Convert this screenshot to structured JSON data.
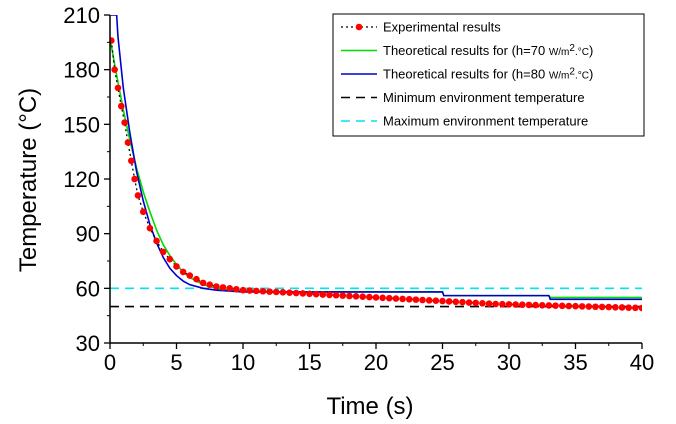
{
  "chart_data": {
    "type": "line",
    "xlabel": "Time (s)",
    "ylabel": "Temperature (°C)",
    "xlim": [
      0,
      40
    ],
    "ylim": [
      30,
      210
    ],
    "xticks": [
      0,
      5,
      10,
      15,
      20,
      25,
      30,
      35,
      40
    ],
    "yticks": [
      30,
      60,
      90,
      120,
      150,
      180,
      210
    ],
    "grid": false,
    "legend_position": "top-right",
    "series": [
      {
        "name": "Experimental results",
        "style": "dotted-markers",
        "color": "#000000",
        "marker_color": "#ff0000",
        "x": [
          0.1,
          0.35,
          0.6,
          0.85,
          1.1,
          1.35,
          1.6,
          1.85,
          2.1,
          2.5,
          3.0,
          3.5,
          4.0,
          4.5,
          5.0,
          5.5,
          6.0,
          6.5,
          7.0,
          7.5,
          8.0,
          8.5,
          9.0,
          9.5,
          10.0,
          10.5,
          11.0,
          11.5,
          12.0,
          12.5,
          13.0,
          13.5,
          14.0,
          14.5,
          15.0,
          15.5,
          16.0,
          16.5,
          17.0,
          17.5,
          18.0,
          18.5,
          19.0,
          19.5,
          20.0,
          20.5,
          21.0,
          21.5,
          22.0,
          22.5,
          23.0,
          23.5,
          24.0,
          24.5,
          25.0,
          25.5,
          26.0,
          26.5,
          27.0,
          27.5,
          28.0,
          28.5,
          29.0,
          29.5,
          30.0,
          30.5,
          31.0,
          31.5,
          32.0,
          32.5,
          33.0,
          33.5,
          34.0,
          34.5,
          35.0,
          35.5,
          36.0,
          36.5,
          37.0,
          37.5,
          38.0,
          38.5,
          39.0,
          39.5,
          40.0
        ],
        "y": [
          196,
          180,
          170,
          160,
          151,
          140,
          130,
          120,
          111,
          102,
          93,
          86,
          80,
          76,
          72,
          69,
          67,
          65,
          63,
          62,
          61,
          60.5,
          60,
          59.5,
          59,
          58.8,
          58.6,
          58.4,
          58.2,
          58,
          57.8,
          57.6,
          57.4,
          57.2,
          57,
          56.8,
          56.6,
          56.4,
          56.2,
          56,
          55.8,
          55.6,
          55.4,
          55.2,
          55,
          54.8,
          54.6,
          54.4,
          54.2,
          54,
          53.8,
          53.6,
          53.4,
          53.2,
          53,
          52.8,
          52.6,
          52.4,
          52.2,
          52,
          51.8,
          51.6,
          51.4,
          51.3,
          51.2,
          51.1,
          51,
          50.9,
          50.8,
          50.7,
          50.6,
          50.5,
          50.4,
          50.3,
          50.2,
          50.1,
          50,
          49.9,
          49.8,
          49.7,
          49.6,
          49.5,
          49.4,
          49.3,
          49.2
        ]
      },
      {
        "name": "Theoretical results for (h=70 W/m².°C)",
        "style": "solid",
        "color": "#00dd00",
        "x": [
          0,
          0.5,
          1,
          1.5,
          2,
          2.5,
          3,
          3.5,
          4,
          4.5,
          5,
          5.5,
          6,
          7,
          8,
          9,
          10,
          12,
          14,
          16,
          18,
          20,
          22,
          24,
          25,
          25.1,
          26,
          28,
          30,
          32,
          33,
          33.1,
          34,
          36,
          38,
          40
        ],
        "y": [
          197,
          177,
          158,
          141,
          126,
          113,
          102,
          92,
          84,
          78,
          73,
          69,
          66,
          62,
          60,
          59,
          58.5,
          58,
          58,
          58,
          58,
          58,
          58,
          58,
          58,
          56,
          56,
          56,
          56,
          56,
          56,
          55,
          55,
          55,
          55,
          55
        ]
      },
      {
        "name": "Theoretical results for (h=80 W/m².°C)",
        "style": "solid",
        "color": "#0000cc",
        "x": [
          0,
          0.5,
          0.6,
          1,
          1.5,
          2,
          2.5,
          3,
          3.5,
          4,
          4.5,
          5,
          5.5,
          6,
          7,
          8,
          9,
          10,
          12,
          14,
          16,
          18,
          20,
          22,
          24,
          25,
          25.1,
          26,
          28,
          30,
          32,
          33,
          33.1,
          34,
          36,
          38,
          40
        ],
        "y": [
          210,
          210,
          198,
          170,
          145,
          124,
          108,
          95,
          85,
          77,
          71,
          67,
          64,
          62,
          60,
          59,
          58.5,
          58,
          58,
          58,
          58,
          58,
          58,
          58,
          58,
          58,
          56,
          56,
          56,
          56,
          56,
          56,
          54,
          54,
          54,
          54,
          54
        ]
      },
      {
        "name": "Minimum environment temperature",
        "style": "dashed",
        "color": "#000000",
        "x": [
          0,
          40
        ],
        "y": [
          50,
          50
        ]
      },
      {
        "name": "Maximum environment temperature",
        "style": "dashed",
        "color": "#00e5ee",
        "x": [
          0,
          40
        ],
        "y": [
          60,
          60
        ]
      }
    ]
  }
}
